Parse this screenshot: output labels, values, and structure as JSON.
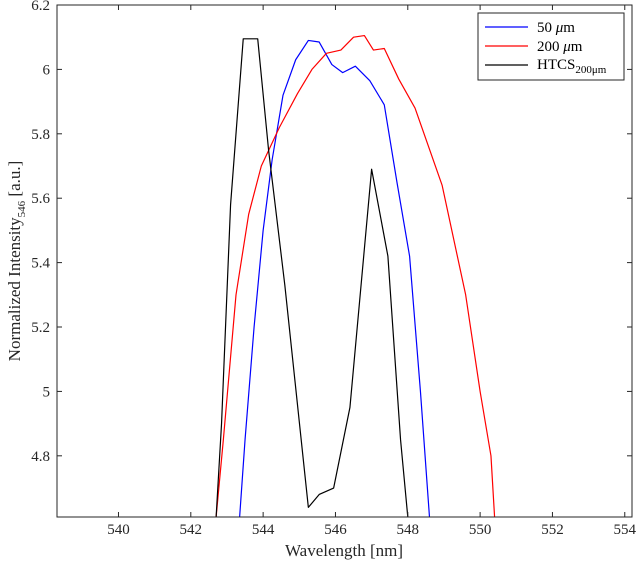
{
  "chart_data": {
    "type": "line",
    "title": "",
    "xlabel": "Wavelength [nm]",
    "ylabel_main": "Normalized Intensity",
    "ylabel_sub": "546",
    "ylabel_tail": " [a.u.]",
    "xlim": [
      538.3,
      554.2
    ],
    "ylim": [
      4.61,
      6.2
    ],
    "xticks": [
      540,
      542,
      544,
      546,
      548,
      550,
      552,
      554
    ],
    "yticks": [
      4.8,
      5,
      5.2,
      5.4,
      5.6,
      5.8,
      6,
      6.2
    ],
    "grid": false,
    "legend_position": "top-right",
    "series": [
      {
        "name": "50 μm",
        "legend_main": "50 ",
        "legend_mu": "μ",
        "legend_tail": "m",
        "color": "#0000ff",
        "points": [
          [
            543.35,
            4.61
          ],
          [
            543.5,
            4.85
          ],
          [
            543.75,
            5.2
          ],
          [
            544.0,
            5.5
          ],
          [
            544.25,
            5.72
          ],
          [
            544.55,
            5.92
          ],
          [
            544.9,
            6.03
          ],
          [
            545.25,
            6.09
          ],
          [
            545.55,
            6.085
          ],
          [
            545.9,
            6.015
          ],
          [
            546.2,
            5.99
          ],
          [
            546.55,
            6.01
          ],
          [
            546.95,
            5.965
          ],
          [
            547.35,
            5.89
          ],
          [
            547.7,
            5.65
          ],
          [
            548.05,
            5.42
          ],
          [
            548.35,
            5.0
          ],
          [
            548.6,
            4.61
          ]
        ]
      },
      {
        "name": "200 μm",
        "legend_main": "200 ",
        "legend_mu": "μ",
        "legend_tail": "m",
        "color": "#ff0000",
        "points": [
          [
            542.7,
            4.61
          ],
          [
            542.9,
            4.85
          ],
          [
            543.25,
            5.3
          ],
          [
            543.6,
            5.55
          ],
          [
            543.95,
            5.7
          ],
          [
            544.45,
            5.82
          ],
          [
            544.95,
            5.925
          ],
          [
            545.35,
            6.0
          ],
          [
            545.75,
            6.05
          ],
          [
            546.15,
            6.06
          ],
          [
            546.5,
            6.1
          ],
          [
            546.8,
            6.105
          ],
          [
            547.05,
            6.06
          ],
          [
            547.35,
            6.065
          ],
          [
            547.75,
            5.97
          ],
          [
            548.2,
            5.88
          ],
          [
            548.95,
            5.64
          ],
          [
            549.6,
            5.3
          ],
          [
            550.0,
            5.0
          ],
          [
            550.3,
            4.8
          ],
          [
            550.4,
            4.61
          ]
        ]
      },
      {
        "name": "HTCS200μm",
        "legend_main": "HTCS",
        "legend_sub": "200μm",
        "color": "#000000",
        "points": [
          [
            542.7,
            4.61
          ],
          [
            542.85,
            4.9
          ],
          [
            543.1,
            5.58
          ],
          [
            543.45,
            6.095
          ],
          [
            543.85,
            6.095
          ],
          [
            544.15,
            5.75
          ],
          [
            544.6,
            5.33
          ],
          [
            545.25,
            4.64
          ],
          [
            545.55,
            4.68
          ],
          [
            545.95,
            4.7
          ],
          [
            546.4,
            4.95
          ],
          [
            547.0,
            5.69
          ],
          [
            547.45,
            5.42
          ],
          [
            547.8,
            4.85
          ],
          [
            548.0,
            4.61
          ]
        ]
      }
    ]
  }
}
